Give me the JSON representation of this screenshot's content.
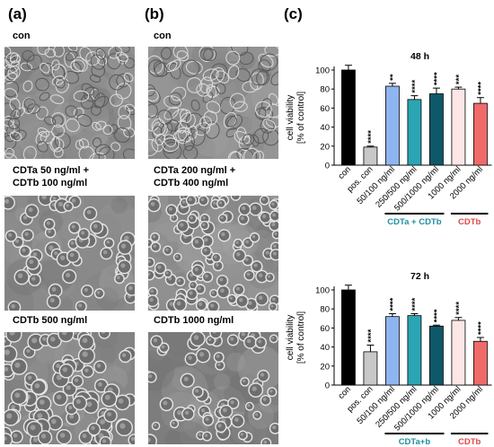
{
  "panels": {
    "a": {
      "letter": "(a)",
      "images": [
        {
          "label_lines": [
            "con"
          ]
        },
        {
          "label_lines": [
            "CDTa 50 ng/ml +",
            "CDTb 100 ng/ml"
          ]
        },
        {
          "label_lines": [
            "CDTb 500 ng/ml"
          ]
        }
      ]
    },
    "b": {
      "letter": "(b)",
      "images": [
        {
          "label_lines": [
            "con"
          ]
        },
        {
          "label_lines": [
            "CDTa 200 ng/ml +",
            "CDTb 400 ng/ml"
          ]
        },
        {
          "label_lines": [
            "CDTb 1000 ng/ml"
          ]
        }
      ]
    },
    "c": {
      "letter": "(c)"
    }
  },
  "colors": {
    "con": "#000000",
    "pos_con": "#c8c8c8",
    "cdta_cdtb_1": "#8fb5f0",
    "cdta_cdtb_2": "#2aa5b3",
    "cdta_cdtb_3": "#0e5868",
    "cdtb_1": "#fde7e6",
    "cdtb_2": "#ef6a6a",
    "group_text_teal": "#1f8fa0",
    "group_text_red": "#e04848"
  },
  "chart_data": [
    {
      "type": "bar",
      "title": "48 h",
      "ylabel": "cell viability\n[% of control]",
      "ylim": [
        0,
        100
      ],
      "yticks": [
        0,
        20,
        40,
        60,
        80,
        100
      ],
      "categories": [
        "con",
        "pos. con",
        "50/100 ng/ml",
        "250/500 ng/ml",
        "500/1000 ng/ml",
        "1000 ng/ml",
        "2000 ng/ml"
      ],
      "values": [
        100,
        19,
        83,
        69,
        75,
        80,
        65
      ],
      "errors": [
        5,
        1,
        3,
        4,
        6,
        2,
        6
      ],
      "significance": [
        "",
        "****",
        "**",
        "****",
        "****",
        "***",
        "****"
      ],
      "groups": [
        {
          "label": "CDTa + CDTb",
          "from": 2,
          "to": 4,
          "color_key": "group_text_teal"
        },
        {
          "label": "CDTb",
          "from": 5,
          "to": 6,
          "color_key": "group_text_red"
        }
      ]
    },
    {
      "type": "bar",
      "title": "72 h",
      "ylabel": "cell viability\n[% of control]",
      "ylim": [
        0,
        100
      ],
      "yticks": [
        0,
        20,
        40,
        60,
        80,
        100
      ],
      "categories": [
        "con",
        "pos. con",
        "50/100 ng/ml",
        "250/500 ng/ml",
        "500/1000 ng/ml",
        "1000 ng/ml",
        "2000 ng/ml"
      ],
      "values": [
        100,
        35,
        72,
        73,
        62,
        68,
        46
      ],
      "errors": [
        5,
        7,
        3,
        2,
        1,
        3,
        4
      ],
      "significance": [
        "",
        "****",
        "****",
        "****",
        "****",
        "****",
        "****"
      ],
      "groups": [
        {
          "label": "CDTa+b",
          "from": 2,
          "to": 4,
          "color_key": "group_text_teal"
        },
        {
          "label": "CDTb",
          "from": 5,
          "to": 6,
          "color_key": "group_text_red"
        }
      ]
    }
  ]
}
